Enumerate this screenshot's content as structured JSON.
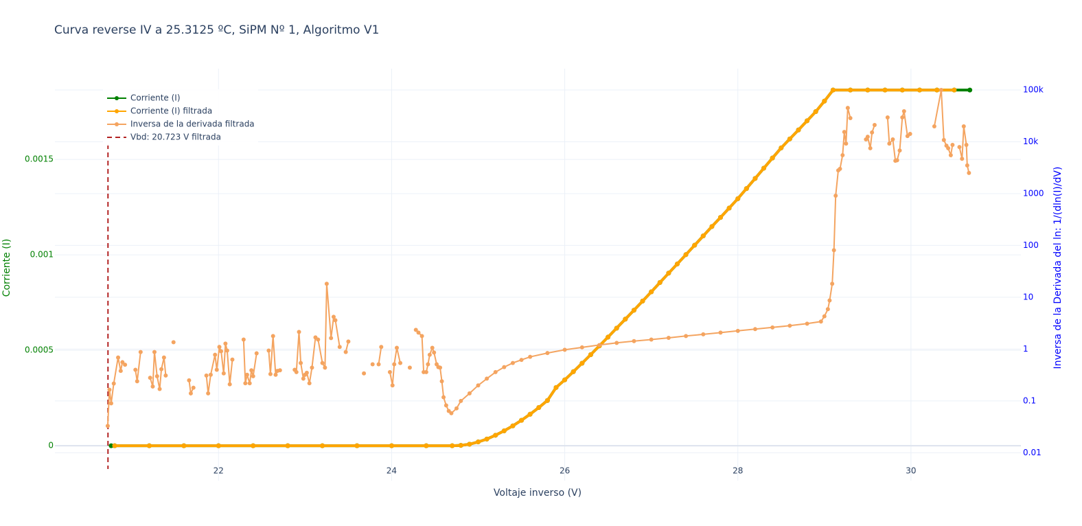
{
  "chart_data": {
    "type": "line",
    "title": "Curva reverse IV a 25.3125 ºC, SiPM Nº 1, Algoritmo V1",
    "x_label": "Voltaje inverso (V)",
    "y_label": "Corriente (I)",
    "y2_label": "Inversa de la Derivada del ln: 1/(dln(I)/dV)",
    "xlim": [
      20.11,
      31.27
    ],
    "xticks": [
      22,
      24,
      26,
      28,
      30
    ],
    "ylim": [
      -0.000183,
      0.001975
    ],
    "yticks": [
      0,
      0.0005,
      0.001,
      0.0015
    ],
    "y2lim": [
      0.0029,
      257000
    ],
    "y2_scale": "log",
    "y2ticks": [
      0.01,
      0.1,
      1,
      10,
      100,
      1000,
      {
        "value": 10000,
        "label": "10k"
      },
      {
        "value": 100000,
        "label": "100k"
      }
    ],
    "y_color": "#008000",
    "y2_color": "#0000ff",
    "grid": true,
    "legend": "top-left",
    "series": [
      {
        "name": "Corriente (I)",
        "color": "#008000",
        "x": [
          20.76,
          20.8,
          21.2,
          21.6,
          22.0,
          22.4,
          22.8,
          23.2,
          23.6,
          24.0,
          24.4,
          24.7,
          24.8,
          24.9,
          25.0,
          25.1,
          25.2,
          25.3,
          25.4,
          25.5,
          25.6,
          25.7,
          25.8,
          25.9,
          26.0,
          26.1,
          26.2,
          26.3,
          26.4,
          26.5,
          26.6,
          26.7,
          26.8,
          26.9,
          27.0,
          27.1,
          27.2,
          27.3,
          27.4,
          27.5,
          27.6,
          27.7,
          27.8,
          27.9,
          28.0,
          28.1,
          28.2,
          28.3,
          28.4,
          28.5,
          28.6,
          28.7,
          28.8,
          28.9,
          29.0,
          29.1,
          29.3,
          29.5,
          29.7,
          29.9,
          30.1,
          30.3,
          30.5,
          30.68
        ],
        "values": [
          0,
          0,
          0,
          0,
          0,
          0,
          0,
          0,
          0,
          0,
          0,
          0,
          2e-06,
          8e-06,
          2e-05,
          3.5e-05,
          5.5e-05,
          7.8e-05,
          0.000104,
          0.000133,
          0.000165,
          0.0002,
          0.000237,
          0.000305,
          0.000345,
          0.000388,
          0.000432,
          0.000477,
          0.000523,
          0.000569,
          0.000616,
          0.000663,
          0.00071,
          0.000758,
          0.000806,
          0.000855,
          0.000904,
          0.000952,
          0.001001,
          0.00105,
          0.001099,
          0.001148,
          0.001196,
          0.001245,
          0.001294,
          0.001347,
          0.0014,
          0.001454,
          0.001507,
          0.00156,
          0.001607,
          0.001654,
          0.001702,
          0.00175,
          0.001805,
          0.001863,
          0.001863,
          0.001863,
          0.001863,
          0.001863,
          0.001863,
          0.001863,
          0.001863,
          0.001863
        ]
      },
      {
        "name": "Corriente (I) filtrada",
        "color": "#ffa500",
        "x": [
          20.76,
          20.8,
          21.2,
          21.6,
          22.0,
          22.4,
          22.8,
          23.2,
          23.6,
          24.0,
          24.4,
          24.7,
          24.8,
          24.9,
          25.0,
          25.1,
          25.2,
          25.3,
          25.4,
          25.5,
          25.6,
          25.7,
          25.8,
          25.9,
          26.0,
          26.1,
          26.2,
          26.3,
          26.4,
          26.5,
          26.6,
          26.7,
          26.8,
          26.9,
          27.0,
          27.1,
          27.2,
          27.3,
          27.4,
          27.5,
          27.6,
          27.7,
          27.8,
          27.9,
          28.0,
          28.1,
          28.2,
          28.3,
          28.4,
          28.5,
          28.6,
          28.7,
          28.8,
          28.9,
          29.0,
          29.1,
          29.3,
          29.5,
          29.7,
          29.9,
          30.1,
          30.3,
          30.5,
          30.68
        ],
        "values": [
          null,
          0,
          0,
          0,
          0,
          0,
          0,
          0,
          0,
          0,
          0,
          0,
          2e-06,
          8e-06,
          2e-05,
          3.5e-05,
          5.5e-05,
          7.8e-05,
          0.000104,
          0.000133,
          0.000165,
          0.0002,
          0.000237,
          0.000305,
          0.000345,
          0.000388,
          0.000432,
          0.000477,
          0.000523,
          0.000569,
          0.000616,
          0.000663,
          0.00071,
          0.000758,
          0.000806,
          0.000855,
          0.000904,
          0.000952,
          0.001001,
          0.00105,
          0.001099,
          0.001148,
          0.001196,
          0.001245,
          0.001294,
          0.001347,
          0.0014,
          0.001454,
          0.001507,
          0.00156,
          0.001607,
          0.001654,
          0.001702,
          0.00175,
          0.001805,
          0.001863,
          0.001863,
          0.001863,
          0.001863,
          0.001863,
          0.001863,
          0.001863,
          0.001863,
          null
        ]
      },
      {
        "name": "Inversa de la derivada filtrada",
        "color": "#f4a460",
        "axis": "y2",
        "x": [
          20.72,
          20.74,
          20.76,
          20.79,
          20.84,
          20.87,
          20.89,
          20.92,
          20.98,
          21.04,
          21.06,
          21.1,
          21.15,
          21.21,
          21.24,
          21.26,
          21.29,
          21.32,
          21.34,
          21.37,
          21.39,
          21.43,
          21.48,
          21.57,
          21.66,
          21.68,
          21.71,
          21.78,
          21.86,
          21.88,
          21.91,
          21.96,
          21.98,
          22.01,
          22.03,
          22.06,
          22.08,
          22.1,
          22.13,
          22.16,
          22.22,
          22.29,
          22.31,
          22.33,
          22.36,
          22.38,
          22.4,
          22.44,
          22.51,
          22.58,
          22.6,
          22.63,
          22.66,
          22.68,
          22.71,
          22.8,
          22.88,
          22.9,
          22.93,
          22.95,
          22.98,
          23.0,
          23.02,
          23.05,
          23.08,
          23.12,
          23.15,
          23.2,
          23.23,
          23.25,
          23.3,
          23.33,
          23.35,
          23.4,
          23.44,
          23.47,
          23.5,
          23.6,
          23.68,
          23.73,
          23.78,
          23.82,
          23.85,
          23.88,
          23.93,
          23.98,
          24.01,
          24.03,
          24.06,
          24.1,
          24.15,
          24.21,
          24.25,
          24.28,
          24.31,
          24.35,
          24.37,
          24.4,
          24.42,
          24.44,
          24.47,
          24.49,
          24.52,
          24.54,
          24.56,
          24.58,
          24.6,
          24.63,
          24.66,
          24.69,
          24.75,
          24.8,
          24.9,
          25.0,
          25.1,
          25.2,
          25.3,
          25.4,
          25.5,
          25.6,
          25.8,
          26.0,
          26.2,
          26.4,
          26.6,
          26.8,
          27.0,
          27.2,
          27.4,
          27.6,
          27.8,
          28.0,
          28.2,
          28.4,
          28.6,
          28.8,
          28.96,
          29.0,
          29.04,
          29.06,
          29.09,
          29.11,
          29.13,
          29.16,
          29.18,
          29.21,
          29.23,
          29.25,
          29.27,
          29.3,
          29.4,
          29.48,
          29.5,
          29.53,
          29.55,
          29.58,
          29.65,
          29.73,
          29.75,
          29.79,
          29.82,
          29.84,
          29.87,
          29.9,
          29.92,
          29.96,
          29.99,
          30.1,
          30.27,
          30.35,
          30.38,
          30.41,
          30.43,
          30.46,
          30.48,
          30.52,
          30.56,
          30.59,
          30.61,
          30.64,
          30.65,
          30.67
        ],
        "values": [
          0.033,
          0.165,
          0.09,
          0.217,
          0.69,
          0.38,
          0.56,
          0.5,
          null,
          0.4,
          0.24,
          0.88,
          null,
          0.28,
          0.19,
          0.88,
          0.3,
          0.17,
          0.41,
          0.69,
          0.31,
          null,
          1.36,
          null,
          0.25,
          0.14,
          0.18,
          null,
          0.31,
          0.14,
          0.32,
          0.78,
          0.4,
          1.1,
          0.91,
          0.34,
          1.28,
          0.94,
          0.21,
          0.63,
          null,
          1.53,
          0.22,
          0.32,
          0.22,
          0.39,
          0.3,
          0.83,
          null,
          0.94,
          0.33,
          1.79,
          0.32,
          0.38,
          0.39,
          null,
          0.4,
          0.36,
          2.15,
          0.54,
          0.27,
          0.32,
          0.35,
          0.22,
          0.44,
          1.68,
          1.53,
          0.54,
          0.44,
          18.2,
          1.63,
          4.2,
          3.6,
          1.1,
          null,
          0.88,
          1.4,
          null,
          0.34,
          null,
          0.51,
          null,
          0.51,
          1.1,
          null,
          0.36,
          0.2,
          0.51,
          1.06,
          0.54,
          null,
          0.44,
          null,
          2.35,
          2.08,
          1.79,
          0.36,
          0.36,
          0.51,
          0.78,
          1.06,
          0.86,
          0.51,
          0.45,
          0.44,
          0.24,
          0.118,
          0.082,
          0.064,
          0.058,
          0.072,
          0.1,
          0.14,
          0.2,
          0.27,
          0.36,
          0.45,
          0.54,
          0.62,
          0.71,
          0.84,
          0.97,
          1.08,
          1.2,
          1.32,
          1.43,
          1.53,
          1.65,
          1.79,
          1.93,
          2.08,
          2.25,
          2.43,
          2.62,
          2.83,
          3.1,
          3.4,
          4.3,
          5.9,
          8.7,
          18.2,
          81,
          910,
          2800,
          3000,
          5500,
          15500,
          9200,
          45000,
          28600,
          null,
          11100,
          12500,
          7500,
          15100,
          21100,
          null,
          29500,
          9200,
          11100,
          4300,
          4400,
          6800,
          29500,
          38800,
          12900,
          14200,
          null,
          19800,
          100000,
          10800,
          8400,
          7500,
          5500,
          8700,
          null,
          7900,
          4700,
          19800,
          8700,
          3500,
          2500
        ]
      }
    ],
    "vline": {
      "name": "Vbd: 20.723 V filtrada",
      "x": 20.723,
      "color": "#b22222",
      "dash": "dash"
    }
  }
}
